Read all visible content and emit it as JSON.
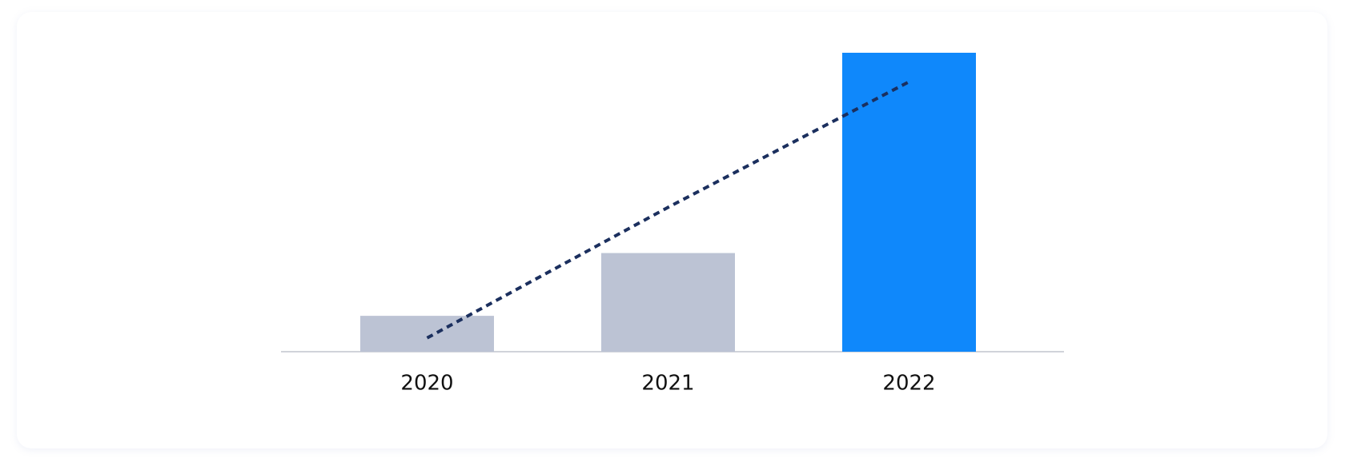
{
  "chart_data": {
    "type": "bar",
    "categories": [
      "2020",
      "2021",
      "2022"
    ],
    "values": [
      12,
      33,
      100
    ],
    "colors": [
      "#bcc3d4",
      "#bcc3d4",
      "#0f88fb"
    ],
    "ylim": [
      0,
      100
    ],
    "trendline": {
      "color": "#1b2f5e",
      "dashed": true,
      "values": [
        4.6,
        48.3,
        90.3
      ]
    }
  }
}
